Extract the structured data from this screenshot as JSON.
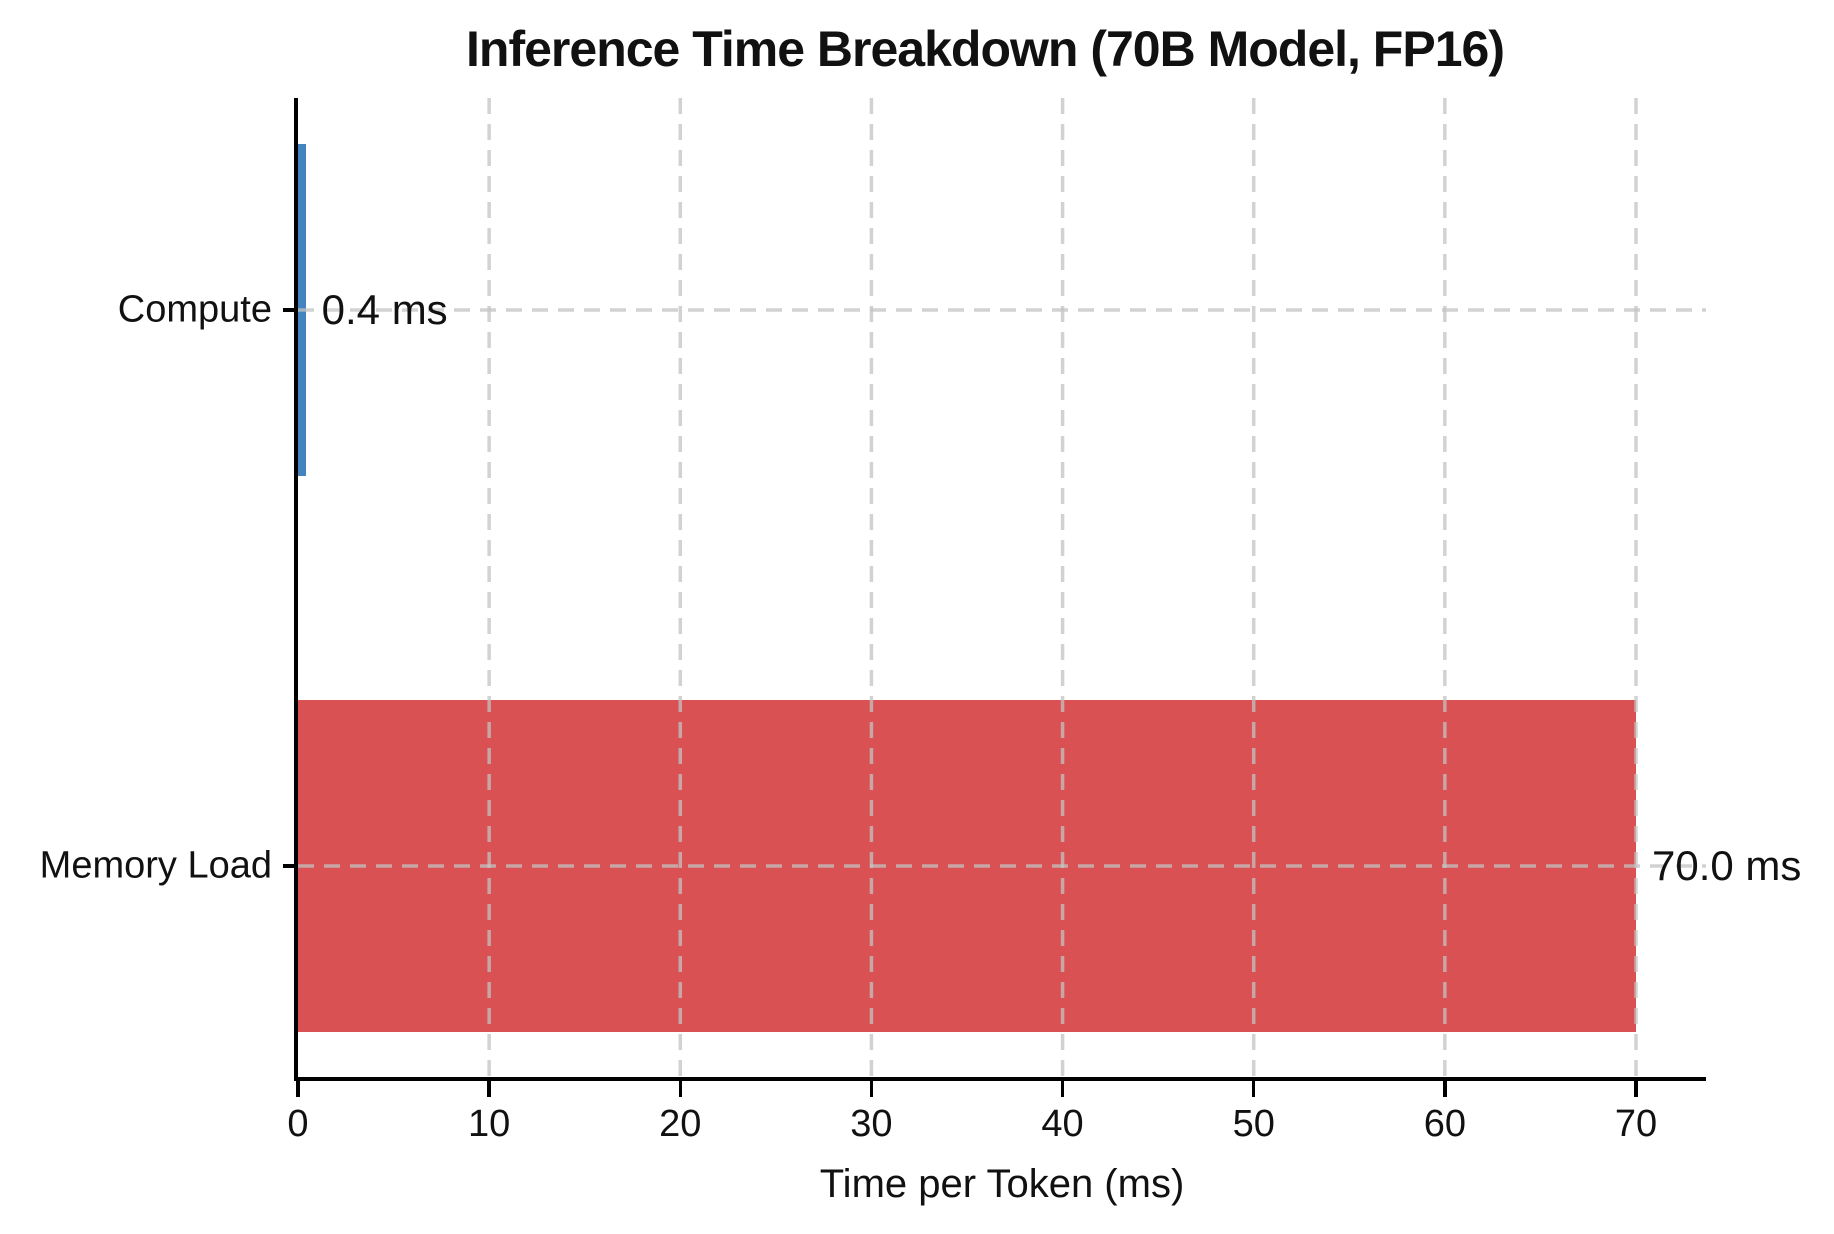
{
  "chart_data": {
    "type": "bar",
    "orientation": "horizontal",
    "title": "Inference Time Breakdown (70B Model, FP16)",
    "xlabel": "Time per Token (ms)",
    "ylabel": "",
    "categories": [
      "Compute",
      "Memory Load"
    ],
    "values": [
      0.4,
      70.0
    ],
    "bar_labels": [
      "0.4 ms",
      "70.0 ms"
    ],
    "bar_colors": [
      "#4484be",
      "#d95152"
    ],
    "xticks": [
      0,
      10,
      20,
      30,
      40,
      50,
      60,
      70
    ],
    "xlim": [
      0,
      73.7
    ],
    "grid": "dashed",
    "grid_color": "#c3c3c3",
    "axis_color": "#000000",
    "text_color": "#111111",
    "legend": "none"
  }
}
